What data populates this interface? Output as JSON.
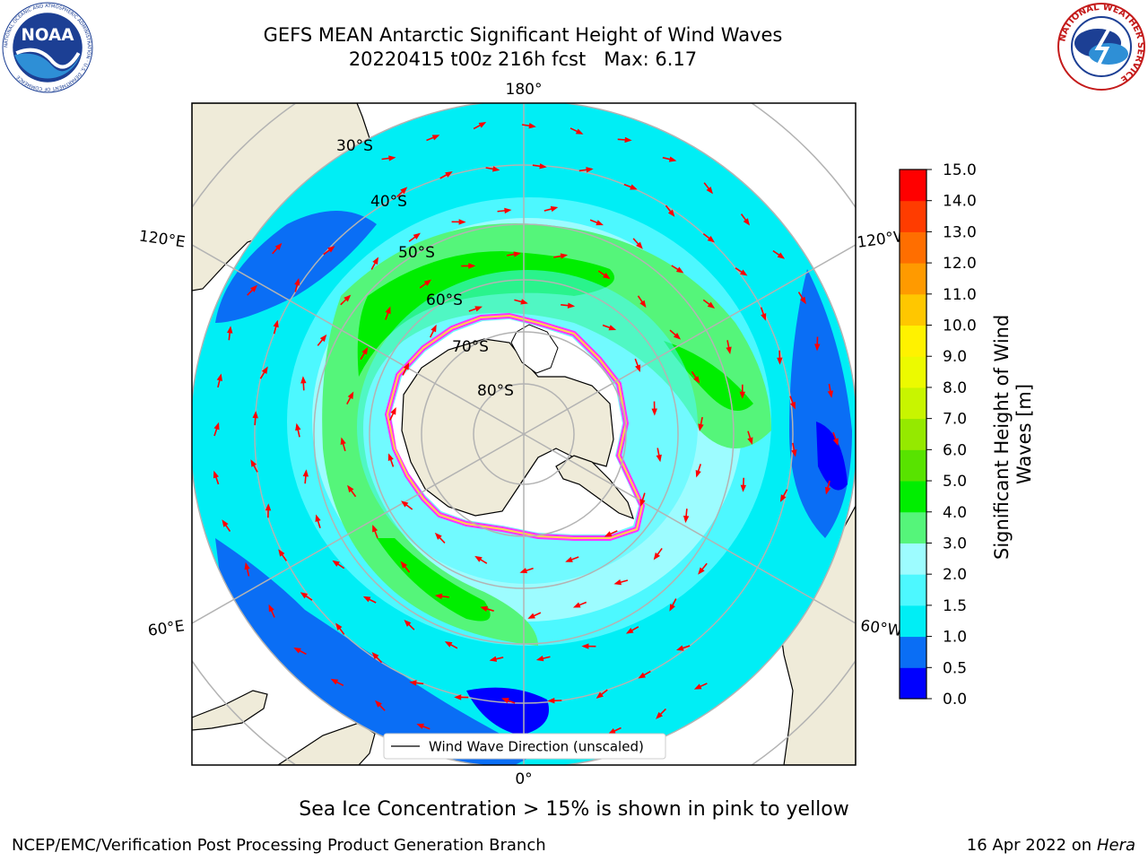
{
  "header": {
    "title_line1": "GEFS MEAN Antarctic Significant Height of Wind Waves",
    "title_line2": "20220415 t00z 216h fcst   Max: 6.17"
  },
  "logos": {
    "left": {
      "name": "NOAA",
      "text": "NOAA",
      "ring_text": "NATIONAL OCEANIC AND ATMOSPHERIC ADMINISTRATION · U.S. DEPARTMENT OF COMMERCE"
    },
    "right": {
      "name": "National Weather Service",
      "ring_text": "NATIONAL WEATHER SERVICE"
    }
  },
  "map": {
    "projection": "south polar stereographic",
    "longitude_labels": {
      "top": "180°",
      "bottom": "0°",
      "upper_left": "120°E",
      "upper_right": "120°W",
      "lower_left": "60°E",
      "lower_right": "60°W"
    },
    "latitude_labels": [
      "30°S",
      "40°S",
      "50°S",
      "60°S",
      "70°S",
      "80°S"
    ],
    "legend": {
      "label": "Wind Wave Direction (unscaled)"
    },
    "colors": {
      "land": "#efebd9",
      "arrow": "#ff0000",
      "grid": "#b3b3b3",
      "ice_edge": [
        "#ff33ff",
        "#ffd24a"
      ]
    }
  },
  "colorbar": {
    "label": "Significant Height of Wind Waves [m]",
    "ticks": [
      "0.0",
      "0.5",
      "1.0",
      "1.5",
      "2.0",
      "3.0",
      "4.0",
      "5.0",
      "6.0",
      "7.0",
      "8.0",
      "9.0",
      "10.0",
      "11.0",
      "12.0",
      "13.0",
      "14.0",
      "15.0"
    ],
    "colors": [
      "#0000ff",
      "#0a6ef5",
      "#00eef5",
      "#4df8ff",
      "#9dfcff",
      "#55f57a",
      "#00ee00",
      "#58e300",
      "#95e900",
      "#c8f500",
      "#ecfa00",
      "#fff200",
      "#ffc700",
      "#ff9a00",
      "#ff6e00",
      "#ff3c00",
      "#ff0000"
    ]
  },
  "caption": "Sea Ice Concentration > 15% is shown in pink to yellow",
  "footer": {
    "left": "NCEP/EMC/Verification Post Processing Product Generation Branch",
    "right_date": "16 Apr 2022 on",
    "right_host": "Hera"
  }
}
